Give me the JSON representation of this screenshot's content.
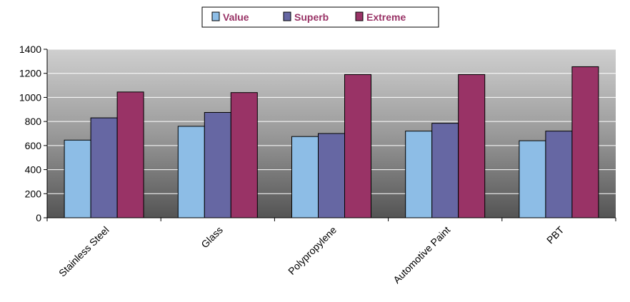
{
  "chart_data": {
    "type": "bar",
    "categories": [
      "Stainless Steel",
      "Glass",
      "Polypropylene",
      "Automotive Paint",
      "PBT"
    ],
    "series": [
      {
        "name": "Value",
        "values": [
          645,
          760,
          675,
          720,
          640
        ],
        "color": "#8dbde6"
      },
      {
        "name": "Superb",
        "values": [
          830,
          875,
          700,
          785,
          720
        ],
        "color": "#6667a3"
      },
      {
        "name": "Extreme",
        "values": [
          1045,
          1040,
          1190,
          1190,
          1255
        ],
        "color": "#993366"
      }
    ],
    "yticks": [
      "0",
      "200",
      "400",
      "600",
      "800",
      "1000",
      "1200",
      "1400"
    ],
    "ylim": [
      0,
      1400
    ],
    "grid": true,
    "legend_position": "top-center",
    "plot_background": "gradient-gray",
    "legend_text_color": "#993366"
  }
}
